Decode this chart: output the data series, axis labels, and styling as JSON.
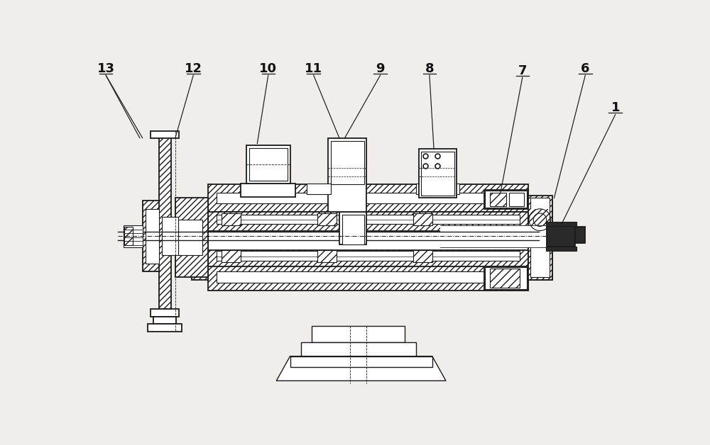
{
  "bg_color": "#f0eeea",
  "line_color": "#1a1a1a",
  "dark_fill": "#2a2a2a",
  "white": "#ffffff",
  "label_font_size": 13
}
